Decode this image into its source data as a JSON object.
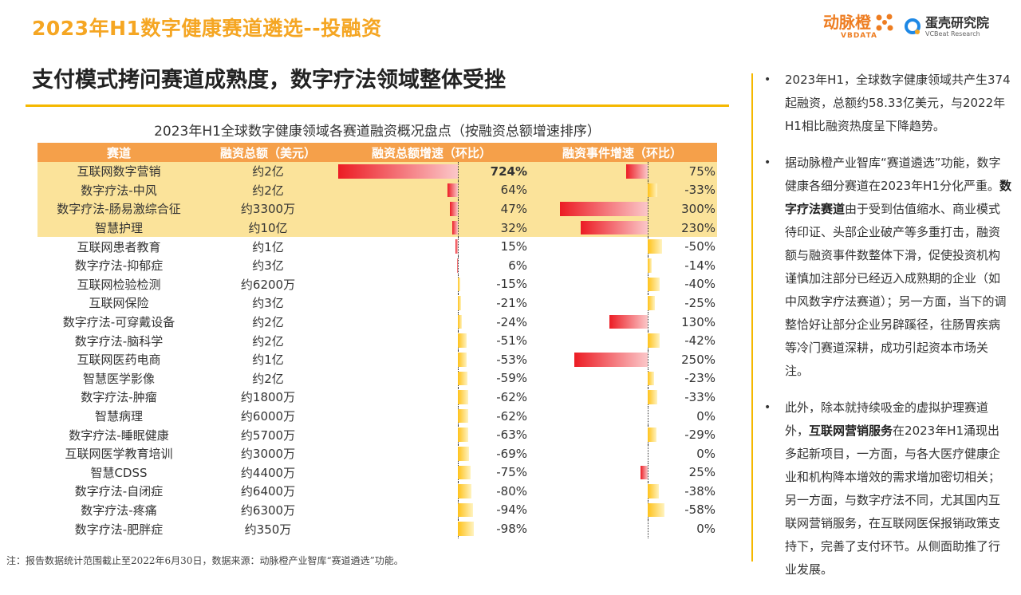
{
  "header": {
    "section_title": "2023年H1数字健康赛道遴选--投融资",
    "headline": "支付模式拷问赛道成熟度，数字疗法领域整体受挫"
  },
  "brands": [
    {
      "name_cn": "动脉橙",
      "name_en": "VBDATA"
    },
    {
      "name_cn": "蛋壳研究院",
      "name_en": "VCBeat Research"
    }
  ],
  "chart_data": {
    "type": "table",
    "title": "2023年H1全球数字健康领域各赛道融资概况盘点（按融资总额增速排序）",
    "columns": [
      "赛道",
      "融资总额（美元）",
      "融资总额增速（环比）",
      "融资事件增速（环比）"
    ],
    "rows": [
      {
        "name": "互联网数字营销",
        "amount": "约2亿",
        "amt_growth": 724,
        "amt_growth_label": "724%",
        "evt_growth": 75,
        "evt_growth_label": "75%",
        "highlight": true
      },
      {
        "name": "数字疗法-中风",
        "amount": "约2亿",
        "amt_growth": 64,
        "amt_growth_label": "64%",
        "evt_growth": -33,
        "evt_growth_label": "-33%",
        "highlight": true
      },
      {
        "name": "数字疗法-肠易激综合征",
        "amount": "约3300万",
        "amt_growth": 47,
        "amt_growth_label": "47%",
        "evt_growth": 300,
        "evt_growth_label": "300%",
        "highlight": true
      },
      {
        "name": "智慧护理",
        "amount": "约10亿",
        "amt_growth": 32,
        "amt_growth_label": "32%",
        "evt_growth": 230,
        "evt_growth_label": "230%",
        "highlight": true
      },
      {
        "name": "互联网患者教育",
        "amount": "约1亿",
        "amt_growth": 15,
        "amt_growth_label": "15%",
        "evt_growth": -50,
        "evt_growth_label": "-50%",
        "highlight": false
      },
      {
        "name": "数字疗法-抑郁症",
        "amount": "约3亿",
        "amt_growth": 6,
        "amt_growth_label": "6%",
        "evt_growth": -14,
        "evt_growth_label": "-14%",
        "highlight": false
      },
      {
        "name": "互联网检验检测",
        "amount": "约6200万",
        "amt_growth": -15,
        "amt_growth_label": "-15%",
        "evt_growth": -40,
        "evt_growth_label": "-40%",
        "highlight": false
      },
      {
        "name": "互联网保险",
        "amount": "约3亿",
        "amt_growth": -21,
        "amt_growth_label": "-21%",
        "evt_growth": -25,
        "evt_growth_label": "-25%",
        "highlight": false
      },
      {
        "name": "数字疗法-可穿戴设备",
        "amount": "约2亿",
        "amt_growth": -24,
        "amt_growth_label": "-24%",
        "evt_growth": 130,
        "evt_growth_label": "130%",
        "highlight": false
      },
      {
        "name": "数字疗法-脑科学",
        "amount": "约2亿",
        "amt_growth": -51,
        "amt_growth_label": "-51%",
        "evt_growth": -42,
        "evt_growth_label": "-42%",
        "highlight": false
      },
      {
        "name": "互联网医药电商",
        "amount": "约1亿",
        "amt_growth": -53,
        "amt_growth_label": "-53%",
        "evt_growth": 250,
        "evt_growth_label": "250%",
        "highlight": false
      },
      {
        "name": "智慧医学影像",
        "amount": "约2亿",
        "amt_growth": -59,
        "amt_growth_label": "-59%",
        "evt_growth": -23,
        "evt_growth_label": "-23%",
        "highlight": false
      },
      {
        "name": "数字疗法-肿瘤",
        "amount": "约1800万",
        "amt_growth": -62,
        "amt_growth_label": "-62%",
        "evt_growth": -33,
        "evt_growth_label": "-33%",
        "highlight": false
      },
      {
        "name": "智慧病理",
        "amount": "约6000万",
        "amt_growth": -62,
        "amt_growth_label": "-62%",
        "evt_growth": 0,
        "evt_growth_label": "0%",
        "highlight": false
      },
      {
        "name": "数字疗法-睡眠健康",
        "amount": "约5700万",
        "amt_growth": -63,
        "amt_growth_label": "-63%",
        "evt_growth": -29,
        "evt_growth_label": "-29%",
        "highlight": false
      },
      {
        "name": "互联网医学教育培训",
        "amount": "约3000万",
        "amt_growth": -69,
        "amt_growth_label": "-69%",
        "evt_growth": 0,
        "evt_growth_label": "0%",
        "highlight": false
      },
      {
        "name": "智慧CDSS",
        "amount": "约4400万",
        "amt_growth": -75,
        "amt_growth_label": "-75%",
        "evt_growth": 25,
        "evt_growth_label": "25%",
        "highlight": false
      },
      {
        "name": "数字疗法-自闭症",
        "amount": "约6400万",
        "amt_growth": -80,
        "amt_growth_label": "-80%",
        "evt_growth": -38,
        "evt_growth_label": "-38%",
        "highlight": false
      },
      {
        "name": "数字疗法-疼痛",
        "amount": "约6300万",
        "amt_growth": -94,
        "amt_growth_label": "-94%",
        "evt_growth": -58,
        "evt_growth_label": "-58%",
        "highlight": false
      },
      {
        "name": "数字疗法-肥胖症",
        "amount": "约350万",
        "amt_growth": -98,
        "amt_growth_label": "-98%",
        "evt_growth": 0,
        "evt_growth_label": "0%",
        "highlight": false
      }
    ],
    "colors": {
      "positive_bar": "#ec1c24",
      "negative_bar": "#ffc21a",
      "highlight_row": "#fbe39a",
      "header_row": "#f5a04a"
    }
  },
  "bullets": [
    {
      "bullet": "•",
      "segments": [
        {
          "text": "2023年H1，全球数字健康领域共产生374起融资，总额约58.33亿美元，与2022年H1相比融资热度呈下降趋势。",
          "bold": false
        }
      ]
    },
    {
      "bullet": "•",
      "segments": [
        {
          "text": "据动脉橙产业智库“赛道遴选”功能，数字健康各细分赛道在2023年H1分化严重。",
          "bold": false
        },
        {
          "text": "数字疗法赛道",
          "bold": true
        },
        {
          "text": "由于受到估值缩水、商业模式待印证、头部企业破产等多重打击，融资额与融资事件数整体下滑，促使投资机构谨慎加注部分已经迈入成熟期的企业（如中风数字疗法赛道）；另一方面，当下的调整恰好让部分企业另辟蹊径，往肠胃疾病等冷门赛道深耕，成功引起资本市场关注。",
          "bold": false
        }
      ]
    },
    {
      "bullet": "•",
      "segments": [
        {
          "text": "此外，除本就持续吸金的虚拟护理赛道外，",
          "bold": false
        },
        {
          "text": "互联网营销服务",
          "bold": true
        },
        {
          "text": "在2023年H1涌现出多起新项目，一方面，与各大医疗健康企业和机构降本增效的需求增加密切相关；另一方面，与数字疗法不同，尤其国内互联网营销服务，在互联网医保报销政策支持下，完善了支付环节。从侧面助推了行业发展。",
          "bold": false
        }
      ]
    }
  ],
  "footnote": "注：报告数据统计范围截止至2022年6月30日，数据来源：动脉橙产业智库“赛道遴选”功能。"
}
